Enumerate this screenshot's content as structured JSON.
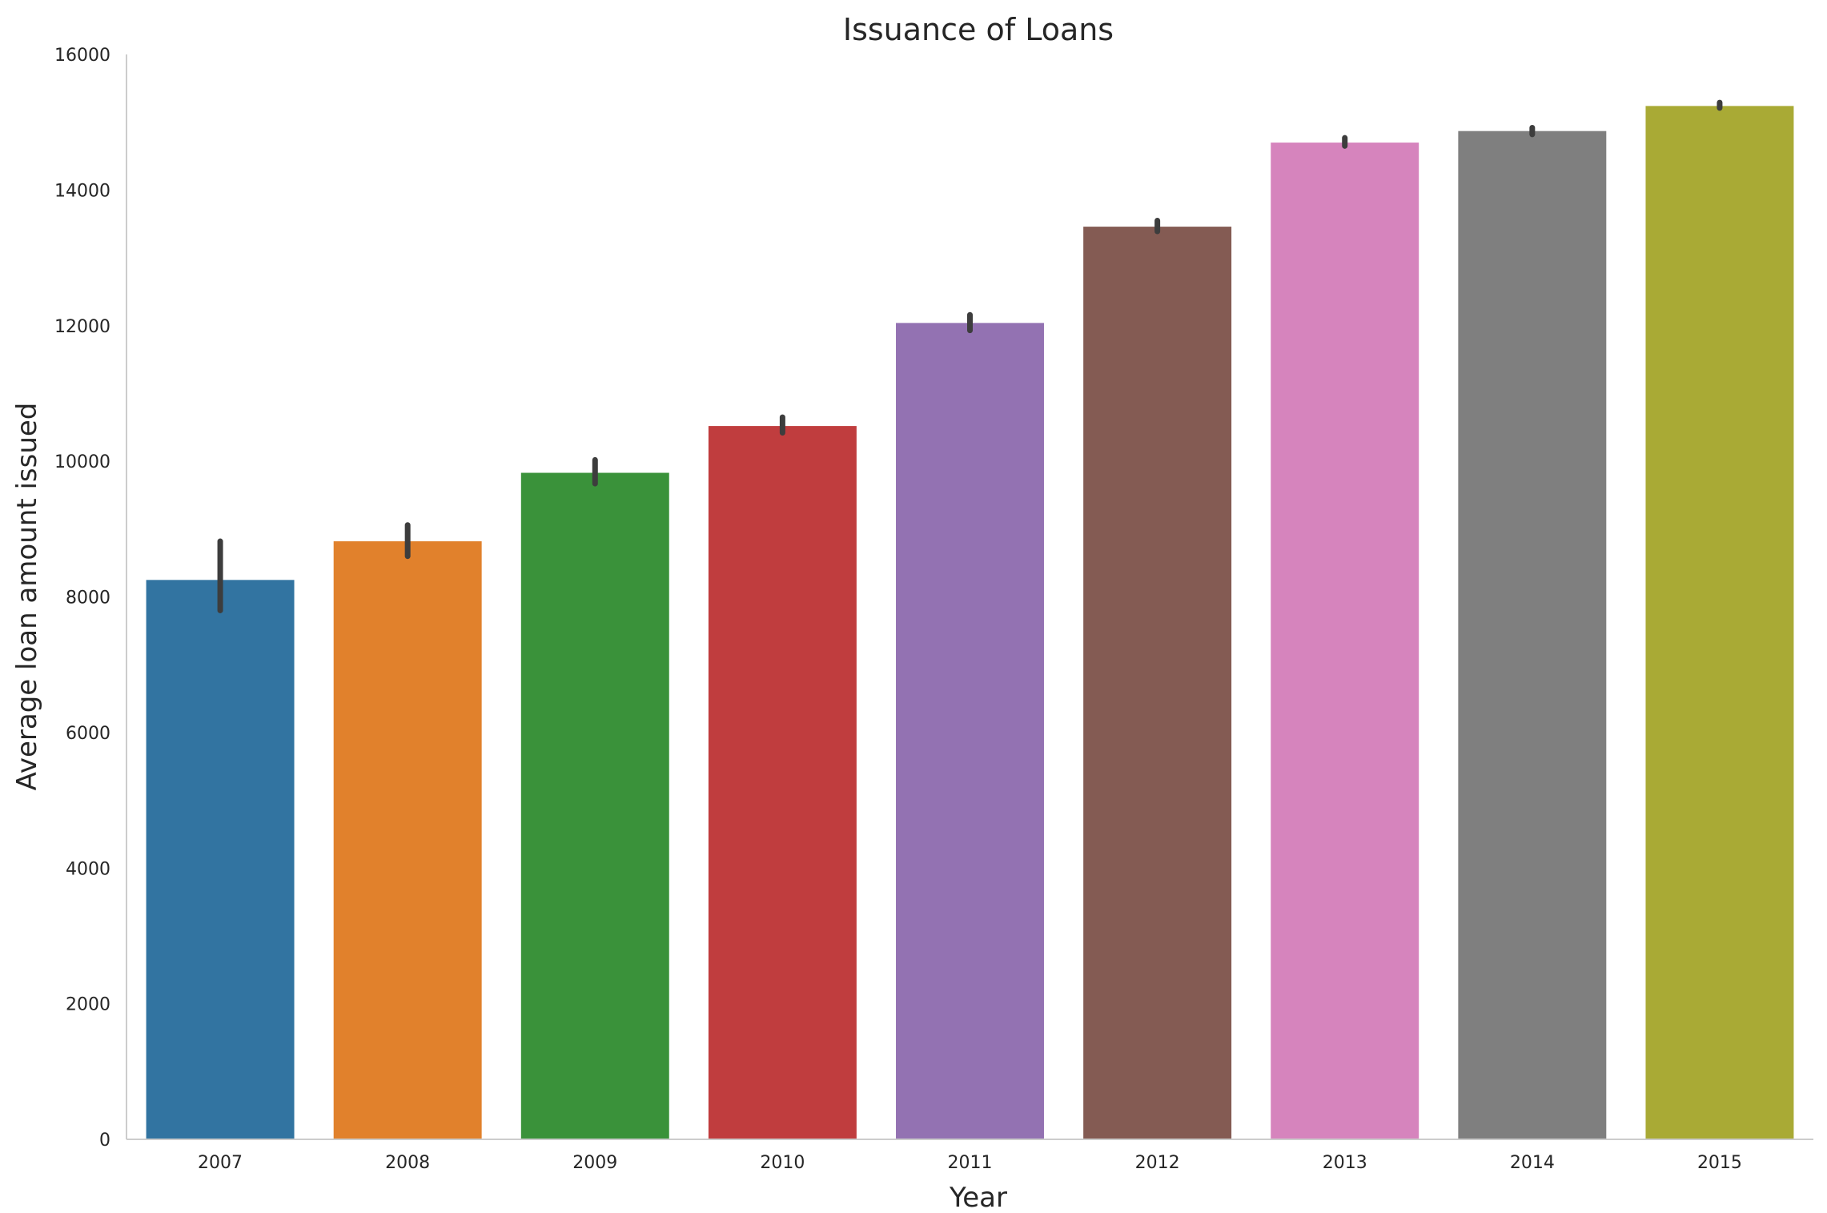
{
  "chart_data": {
    "type": "bar",
    "title": "Issuance of Loans",
    "xlabel": "Year",
    "ylabel": "Average loan amount issued",
    "categories": [
      "2007",
      "2008",
      "2009",
      "2010",
      "2011",
      "2012",
      "2013",
      "2014",
      "2015"
    ],
    "values": [
      8250,
      8820,
      9830,
      10520,
      12040,
      13460,
      14700,
      14870,
      15240
    ],
    "error_low": [
      7800,
      8600,
      9670,
      10420,
      11930,
      13390,
      14650,
      14820,
      15210
    ],
    "error_high": [
      8820,
      9060,
      10020,
      10650,
      12160,
      13550,
      14770,
      14920,
      15290
    ],
    "colors": [
      "#3274a1",
      "#e1812c",
      "#3a923a",
      "#c03d3e",
      "#9372b2",
      "#845b53",
      "#d684bd",
      "#7f7f7f",
      "#a9aa35"
    ],
    "error_color": "#3d3d3d",
    "ylim": [
      0,
      16000
    ],
    "yticks": [
      0,
      2000,
      4000,
      6000,
      8000,
      10000,
      12000,
      14000,
      16000
    ],
    "ytick_labels": [
      "0",
      "2000",
      "4000",
      "6000",
      "8000",
      "10000",
      "12000",
      "14000",
      "16000"
    ],
    "grid": false,
    "legend": "none"
  }
}
